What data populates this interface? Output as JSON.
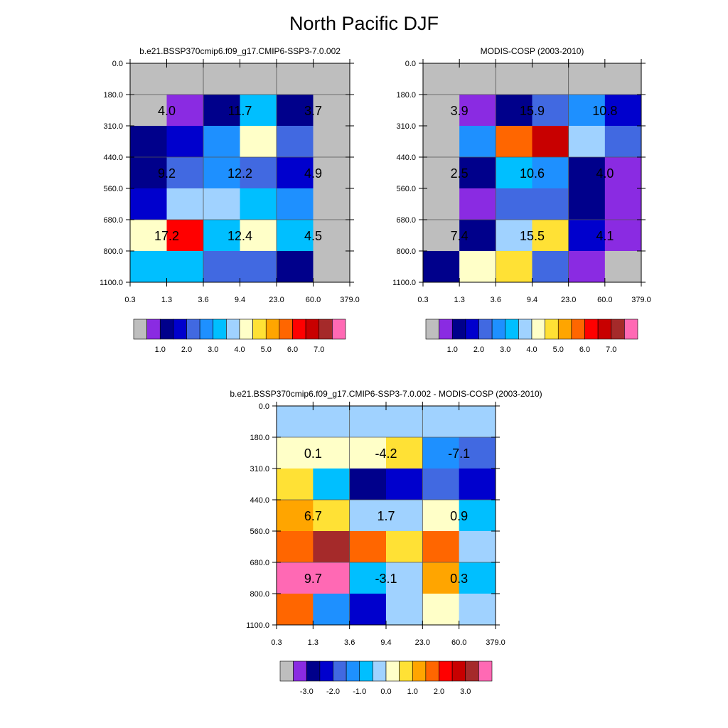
{
  "title": "North Pacific DJF",
  "colors": {
    "missing": "#bebebe",
    "abs_palette": [
      "#bebebe",
      "#8a2be2",
      "#00008b",
      "#0000cd",
      "#4169e1",
      "#1e90ff",
      "#00bfff",
      "#a0d2ff",
      "#ffffc8",
      "#ffe135",
      "#ffa500",
      "#ff6600",
      "#ff0000",
      "#c80000",
      "#a52a2a",
      "#ff69b4"
    ],
    "diff_palette": [
      "#bebebe",
      "#8a2be2",
      "#00008b",
      "#0000cd",
      "#4169e1",
      "#1e90ff",
      "#00bfff",
      "#a0d2ff",
      "#ffffc8",
      "#ffe135",
      "#ffa500",
      "#ff6600",
      "#ff0000",
      "#c80000",
      "#a52a2a",
      "#ff69b4"
    ]
  },
  "chart_data": [
    {
      "type": "heatmap",
      "name": "model",
      "title": "b.e21.BSSP370cmip6.f09_g17.CMIP6-SSP3-7.0.002",
      "x_ticks": [
        "0.3",
        "1.3",
        "3.6",
        "9.4",
        "23.0",
        "60.0",
        "379.0"
      ],
      "y_ticks": [
        "0.0",
        "180.0",
        "310.0",
        "440.0",
        "560.0",
        "680.0",
        "800.0",
        "1100.0"
      ],
      "cells": [
        [
          0,
          0,
          0,
          0,
          0,
          0
        ],
        [
          0,
          1,
          2,
          6,
          2,
          0
        ],
        [
          2,
          3,
          5,
          8,
          4,
          0
        ],
        [
          2,
          4,
          5,
          4,
          3,
          0
        ],
        [
          3,
          7,
          7,
          6,
          5,
          0
        ],
        [
          8,
          12,
          6,
          8,
          6,
          0
        ],
        [
          6,
          6,
          4,
          4,
          2,
          0
        ]
      ],
      "labels": [
        {
          "text": "4.0",
          "col": 1,
          "row": 1.5
        },
        {
          "text": "11.7",
          "col": 3,
          "row": 1.5
        },
        {
          "text": "3.7",
          "col": 5,
          "row": 1.5
        },
        {
          "text": "9.2",
          "col": 1,
          "row": 3.5
        },
        {
          "text": "12.2",
          "col": 3,
          "row": 3.5
        },
        {
          "text": "4.9",
          "col": 5,
          "row": 3.5
        },
        {
          "text": "17.2",
          "col": 1,
          "row": 5.5
        },
        {
          "text": "12.4",
          "col": 3,
          "row": 5.5
        },
        {
          "text": "4.5",
          "col": 5,
          "row": 5.5
        }
      ],
      "colorbar_labels": [
        "1.0",
        "2.0",
        "3.0",
        "4.0",
        "5.0",
        "6.0",
        "7.0"
      ]
    },
    {
      "type": "heatmap",
      "name": "obs",
      "title": "MODIS-COSP (2003-2010)",
      "x_ticks": [
        "0.3",
        "1.3",
        "3.6",
        "9.4",
        "23.0",
        "60.0",
        "379.0"
      ],
      "y_ticks": [
        "0.0",
        "180.0",
        "310.0",
        "440.0",
        "560.0",
        "680.0",
        "800.0",
        "1100.0"
      ],
      "cells": [
        [
          0,
          0,
          0,
          0,
          0,
          0
        ],
        [
          0,
          1,
          2,
          4,
          5,
          3
        ],
        [
          0,
          5,
          11,
          13,
          7,
          4
        ],
        [
          0,
          2,
          6,
          5,
          2,
          1
        ],
        [
          0,
          1,
          4,
          4,
          2,
          1
        ],
        [
          0,
          2,
          7,
          9,
          3,
          1
        ],
        [
          2,
          8,
          9,
          4,
          1,
          0
        ]
      ],
      "labels": [
        {
          "text": "3.9",
          "col": 1,
          "row": 1.5
        },
        {
          "text": "15.9",
          "col": 3,
          "row": 1.5
        },
        {
          "text": "10.8",
          "col": 5,
          "row": 1.5
        },
        {
          "text": "2.5",
          "col": 1,
          "row": 3.5
        },
        {
          "text": "10.6",
          "col": 3,
          "row": 3.5
        },
        {
          "text": "4.0",
          "col": 5,
          "row": 3.5
        },
        {
          "text": "7.4",
          "col": 1,
          "row": 5.5
        },
        {
          "text": "15.5",
          "col": 3,
          "row": 5.5
        },
        {
          "text": "4.1",
          "col": 5,
          "row": 5.5
        }
      ],
      "colorbar_labels": [
        "1.0",
        "2.0",
        "3.0",
        "4.0",
        "5.0",
        "6.0",
        "7.0"
      ]
    },
    {
      "type": "heatmap",
      "name": "diff",
      "title": "b.e21.BSSP370cmip6.f09_g17.CMIP6-SSP3-7.0.002 - MODIS-COSP (2003-2010)",
      "x_ticks": [
        "0.3",
        "1.3",
        "3.6",
        "9.4",
        "23.0",
        "60.0",
        "379.0"
      ],
      "y_ticks": [
        "0.0",
        "180.0",
        "310.0",
        "440.0",
        "560.0",
        "680.0",
        "800.0",
        "1100.0"
      ],
      "cells": [
        [
          7,
          7,
          7,
          7,
          7,
          7
        ],
        [
          8,
          8,
          8,
          9,
          5,
          4
        ],
        [
          9,
          6,
          2,
          3,
          4,
          3
        ],
        [
          10,
          9,
          7,
          7,
          8,
          6
        ],
        [
          11,
          14,
          11,
          9,
          11,
          7
        ],
        [
          15,
          15,
          6,
          7,
          10,
          6
        ],
        [
          11,
          5,
          3,
          7,
          8,
          7
        ]
      ],
      "labels": [
        {
          "text": "0.1",
          "col": 1,
          "row": 1.5
        },
        {
          "text": "-4.2",
          "col": 3,
          "row": 1.5
        },
        {
          "text": "-7.1",
          "col": 5,
          "row": 1.5
        },
        {
          "text": "6.7",
          "col": 1,
          "row": 3.5
        },
        {
          "text": "1.7",
          "col": 3,
          "row": 3.5
        },
        {
          "text": "0.9",
          "col": 5,
          "row": 3.5
        },
        {
          "text": "9.7",
          "col": 1,
          "row": 5.5
        },
        {
          "text": "-3.1",
          "col": 3,
          "row": 5.5
        },
        {
          "text": "0.3",
          "col": 5,
          "row": 5.5
        }
      ],
      "colorbar_labels": [
        "-3.0",
        "-2.0",
        "-1.0",
        "0.0",
        "1.0",
        "2.0",
        "3.0"
      ]
    }
  ]
}
